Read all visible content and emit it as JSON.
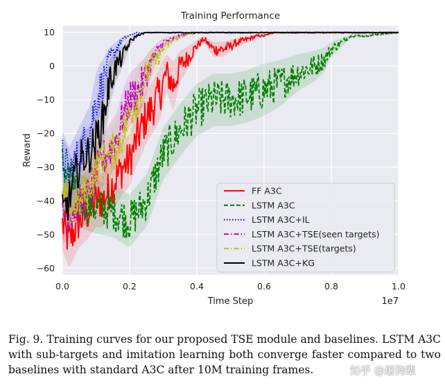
{
  "chart_data": {
    "type": "line",
    "title": "Training Performance",
    "xlabel": "Time Step",
    "ylabel": "Reward",
    "x_scale_label": "1e7",
    "xlim": [
      0.0,
      1.0
    ],
    "ylim": [
      -62,
      12
    ],
    "xticks": [
      0.0,
      0.2,
      0.4,
      0.6,
      0.8,
      1.0
    ],
    "xtick_labels": [
      "0.0",
      "0.2",
      "0.4",
      "0.6",
      "0.8",
      "1.0"
    ],
    "yticks": [
      10,
      0,
      -10,
      -20,
      -30,
      -40,
      -50,
      -60
    ],
    "ytick_labels": [
      "10",
      "0",
      "−10",
      "−20",
      "−30",
      "−40",
      "−50",
      "−60"
    ],
    "grid": true,
    "legend_position": "lower-right",
    "series": [
      {
        "name": "FF A3C",
        "color": "#ff0000",
        "style": "solid",
        "x": [
          0.0,
          0.02,
          0.05,
          0.08,
          0.1,
          0.12,
          0.15,
          0.18,
          0.2,
          0.22,
          0.25,
          0.27,
          0.29,
          0.31,
          0.33,
          0.35,
          0.37,
          0.4,
          0.42,
          0.45,
          0.48,
          0.5,
          0.52,
          0.55,
          0.58,
          0.6,
          0.63,
          0.66,
          0.7,
          0.8,
          1.0
        ],
        "y": [
          -47,
          -52,
          -46,
          -43,
          -40,
          -40,
          -35,
          -30,
          -28,
          -22,
          -15,
          -12,
          -8,
          -2,
          -6,
          0,
          2,
          6,
          8,
          5,
          5,
          6,
          7,
          8,
          9,
          9,
          10,
          10,
          10,
          10,
          10
        ]
      },
      {
        "name": "LSTM A3C",
        "color": "#008000",
        "style": "dashed",
        "x": [
          0.0,
          0.02,
          0.05,
          0.1,
          0.15,
          0.2,
          0.25,
          0.3,
          0.35,
          0.4,
          0.45,
          0.5,
          0.55,
          0.6,
          0.65,
          0.7,
          0.75,
          0.78,
          0.8,
          0.83,
          0.86,
          0.9,
          0.95,
          1.0
        ],
        "y": [
          -29,
          -33,
          -40,
          -42,
          -43,
          -46,
          -40,
          -26,
          -19,
          -13,
          -10,
          -10,
          -9,
          -7,
          -5,
          -2,
          0,
          2,
          5,
          7,
          9,
          9,
          9.5,
          10
        ]
      },
      {
        "name": "LSTM A3C+IL",
        "color": "#0000ff",
        "style": "dotted",
        "x": [
          0.0,
          0.02,
          0.04,
          0.06,
          0.08,
          0.1,
          0.12,
          0.14,
          0.16,
          0.18,
          0.2,
          0.22,
          0.25,
          0.3,
          0.4,
          1.0
        ],
        "y": [
          -27,
          -32,
          -28,
          -24,
          -20,
          -10,
          -5,
          2,
          5,
          8,
          9,
          10,
          10,
          10,
          10,
          10
        ]
      },
      {
        "name": "LSTM A3C+TSE(seen targets)",
        "color": "#bf00bf",
        "style": "dashdot",
        "x": [
          0.0,
          0.04,
          0.08,
          0.1,
          0.12,
          0.14,
          0.16,
          0.18,
          0.2,
          0.22,
          0.24,
          0.26,
          0.28,
          0.3,
          0.35,
          0.4,
          1.0
        ],
        "y": [
          -45,
          -42,
          -38,
          -32,
          -28,
          -25,
          -22,
          -15,
          -10,
          -8,
          -5,
          0,
          4,
          7,
          9,
          10,
          10
        ]
      },
      {
        "name": "LSTM A3C+TSE(targets)",
        "color": "#bfbf00",
        "style": "dashdot",
        "x": [
          0.0,
          0.04,
          0.08,
          0.1,
          0.12,
          0.14,
          0.16,
          0.18,
          0.2,
          0.22,
          0.24,
          0.26,
          0.28,
          0.3,
          0.33,
          0.36,
          0.4,
          1.0
        ],
        "y": [
          -40,
          -42,
          -36,
          -30,
          -28,
          -27,
          -24,
          -20,
          -14,
          -10,
          -5,
          0,
          2,
          5,
          8,
          9,
          10,
          10
        ]
      },
      {
        "name": "LSTM A3C+KG",
        "color": "#000000",
        "style": "solid",
        "x": [
          0.0,
          0.02,
          0.04,
          0.06,
          0.08,
          0.1,
          0.12,
          0.14,
          0.16,
          0.18,
          0.2,
          0.22,
          0.25,
          0.3,
          1.0
        ],
        "y": [
          -44,
          -40,
          -32,
          -27,
          -26,
          -22,
          -16,
          -5,
          0,
          3,
          7,
          9,
          10,
          10,
          10
        ]
      }
    ]
  },
  "caption": "Fig. 9.  Training curves for our proposed TSE module and baselines. LSTM A3C with sub-targets and imitation learning both converge faster compared to two baselines with standard A3C after 10M training frames.",
  "watermark": "知乎 @屠狗辈"
}
